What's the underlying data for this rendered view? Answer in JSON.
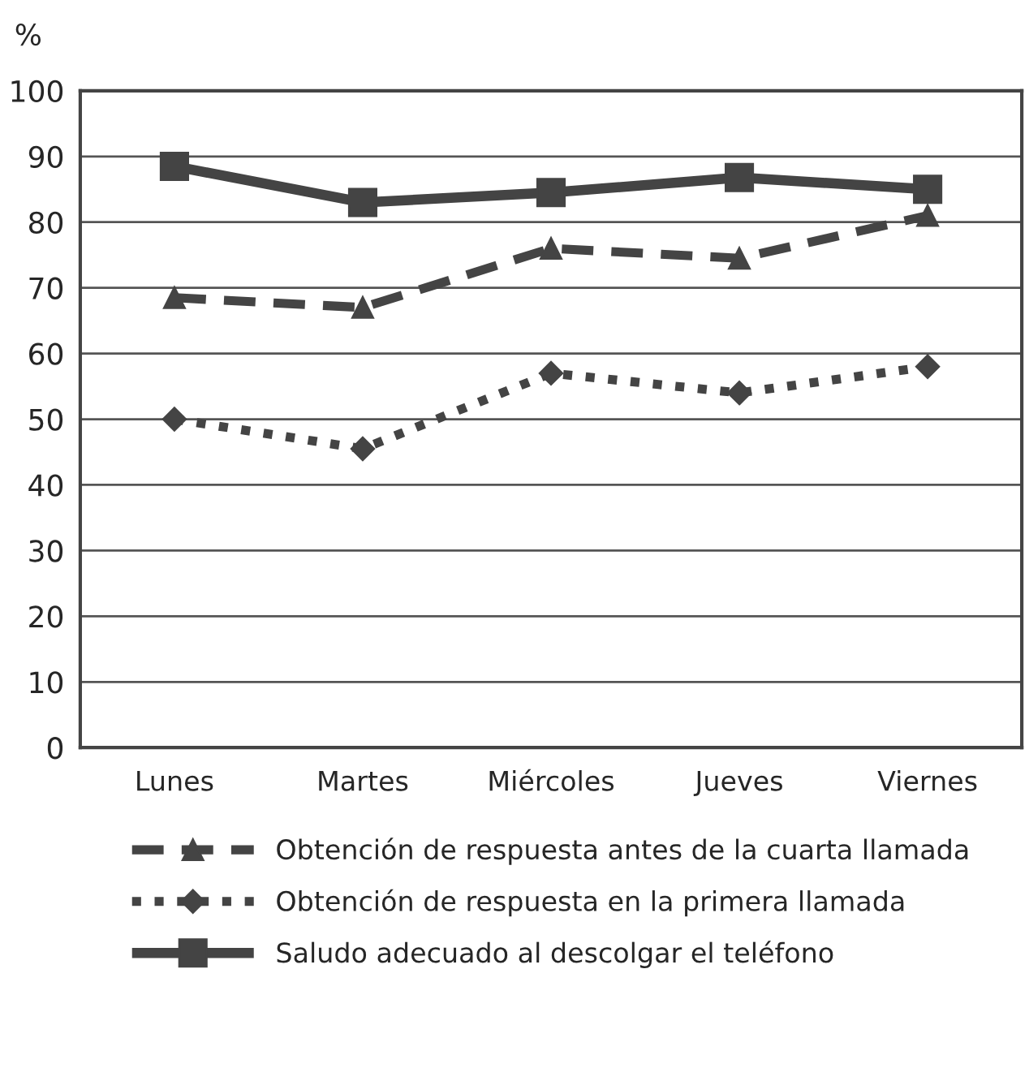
{
  "chart_data": {
    "type": "line",
    "ylabel": "%",
    "categories": [
      "Lunes",
      "Martes",
      "Miércoles",
      "Jueves",
      "Viernes"
    ],
    "series": [
      {
        "name": "Obtención de respuesta antes de la cuarta llamada",
        "color": "#444444",
        "marker": "triangle",
        "line_style": "dashed",
        "values": [
          68.5,
          67,
          76,
          74.5,
          81
        ]
      },
      {
        "name": "Obtención de respuesta en la primera llamada",
        "color": "#444444",
        "marker": "diamond",
        "line_style": "dotted",
        "values": [
          50,
          45.5,
          57,
          54,
          58
        ]
      },
      {
        "name": "Saludo adecuado al descolgar el teléfono",
        "color": "#444444",
        "marker": "square",
        "line_style": "solid",
        "values": [
          88.5,
          83,
          84.5,
          86.8,
          85
        ]
      }
    ],
    "ylim": [
      0,
      100
    ],
    "yticks": [
      0,
      10,
      20,
      30,
      40,
      50,
      60,
      70,
      80,
      90,
      100
    ],
    "grid": "y",
    "legend": "bottom"
  }
}
